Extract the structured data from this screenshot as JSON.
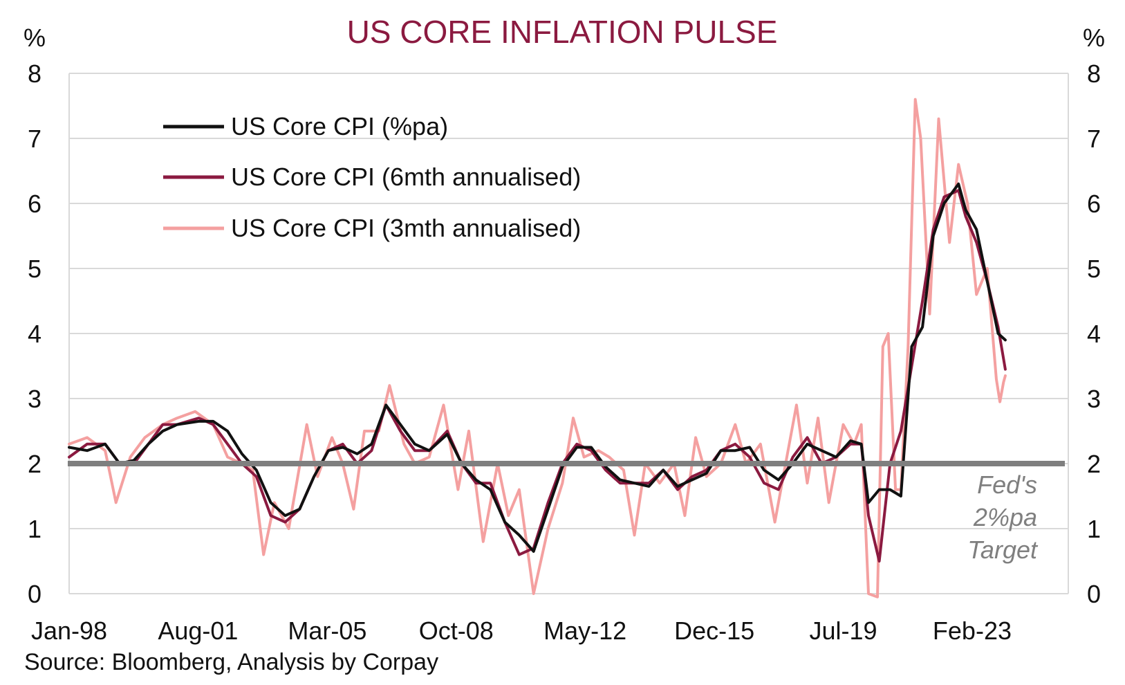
{
  "chart_data": {
    "type": "line",
    "title": "US CORE INFLATION PULSE",
    "ylabel_left": "%",
    "ylabel_right": "%",
    "ylim": [
      0,
      8
    ],
    "yticks": [
      0,
      1,
      2,
      3,
      4,
      5,
      6,
      7,
      8
    ],
    "xlim": [
      1998.0,
      2025.75
    ],
    "xticks": [
      {
        "label": "Jan-98",
        "value": 1998.0
      },
      {
        "label": "Aug-01",
        "value": 2001.58
      },
      {
        "label": "Mar-05",
        "value": 2005.17
      },
      {
        "label": "Oct-08",
        "value": 2008.75
      },
      {
        "label": "May-12",
        "value": 2012.33
      },
      {
        "label": "Dec-15",
        "value": 2015.92
      },
      {
        "label": "Jul-19",
        "value": 2019.5
      },
      {
        "label": "Feb-23",
        "value": 2023.08
      }
    ],
    "grid": true,
    "legend_position": "top-left",
    "reference_line": {
      "value": 2,
      "color": "#7f7f7f",
      "label_lines": [
        "Fed's",
        "2%pa",
        "Target"
      ]
    },
    "source": "Source: Bloomberg, Analysis by Corpay",
    "series": [
      {
        "name": "US Core CPI (%pa)",
        "color": "#111111",
        "points": [
          [
            1998.0,
            2.25
          ],
          [
            1998.5,
            2.2
          ],
          [
            1999.0,
            2.3
          ],
          [
            1999.4,
            2.0
          ],
          [
            1999.8,
            2.05
          ],
          [
            2000.2,
            2.3
          ],
          [
            2000.6,
            2.5
          ],
          [
            2001.0,
            2.6
          ],
          [
            2001.6,
            2.65
          ],
          [
            2002.0,
            2.65
          ],
          [
            2002.4,
            2.5
          ],
          [
            2002.8,
            2.15
          ],
          [
            2003.2,
            1.9
          ],
          [
            2003.6,
            1.4
          ],
          [
            2004.0,
            1.2
          ],
          [
            2004.4,
            1.3
          ],
          [
            2004.8,
            1.8
          ],
          [
            2005.2,
            2.2
          ],
          [
            2005.6,
            2.25
          ],
          [
            2006.0,
            2.15
          ],
          [
            2006.4,
            2.3
          ],
          [
            2006.8,
            2.9
          ],
          [
            2007.2,
            2.6
          ],
          [
            2007.6,
            2.3
          ],
          [
            2008.0,
            2.2
          ],
          [
            2008.5,
            2.45
          ],
          [
            2008.9,
            2.0
          ],
          [
            2009.3,
            1.75
          ],
          [
            2009.7,
            1.6
          ],
          [
            2010.1,
            1.1
          ],
          [
            2010.5,
            0.9
          ],
          [
            2010.9,
            0.65
          ],
          [
            2011.3,
            1.3
          ],
          [
            2011.7,
            1.95
          ],
          [
            2012.1,
            2.25
          ],
          [
            2012.5,
            2.25
          ],
          [
            2012.9,
            1.95
          ],
          [
            2013.3,
            1.75
          ],
          [
            2013.7,
            1.7
          ],
          [
            2014.1,
            1.65
          ],
          [
            2014.5,
            1.9
          ],
          [
            2014.9,
            1.65
          ],
          [
            2015.3,
            1.75
          ],
          [
            2015.7,
            1.85
          ],
          [
            2016.1,
            2.2
          ],
          [
            2016.5,
            2.2
          ],
          [
            2016.9,
            2.25
          ],
          [
            2017.3,
            1.9
          ],
          [
            2017.7,
            1.75
          ],
          [
            2018.1,
            2.0
          ],
          [
            2018.5,
            2.3
          ],
          [
            2018.9,
            2.2
          ],
          [
            2019.3,
            2.1
          ],
          [
            2019.7,
            2.35
          ],
          [
            2020.0,
            2.3
          ],
          [
            2020.2,
            1.4
          ],
          [
            2020.5,
            1.6
          ],
          [
            2020.8,
            1.6
          ],
          [
            2021.1,
            1.5
          ],
          [
            2021.4,
            3.8
          ],
          [
            2021.7,
            4.1
          ],
          [
            2022.0,
            5.5
          ],
          [
            2022.3,
            6.0
          ],
          [
            2022.7,
            6.3
          ],
          [
            2022.9,
            5.9
          ],
          [
            2023.2,
            5.6
          ],
          [
            2023.5,
            4.8
          ],
          [
            2023.8,
            4.0
          ],
          [
            2024.0,
            3.9
          ]
        ]
      },
      {
        "name": "US Core CPI (6mth annualised)",
        "color": "#8b1a40",
        "points": [
          [
            1998.0,
            2.1
          ],
          [
            1998.5,
            2.3
          ],
          [
            1999.0,
            2.3
          ],
          [
            1999.4,
            2.0
          ],
          [
            1999.8,
            2.0
          ],
          [
            2000.2,
            2.3
          ],
          [
            2000.6,
            2.6
          ],
          [
            2001.0,
            2.6
          ],
          [
            2001.6,
            2.7
          ],
          [
            2002.0,
            2.6
          ],
          [
            2002.4,
            2.3
          ],
          [
            2002.8,
            2.0
          ],
          [
            2003.2,
            1.8
          ],
          [
            2003.6,
            1.2
          ],
          [
            2004.0,
            1.1
          ],
          [
            2004.4,
            1.3
          ],
          [
            2004.8,
            1.8
          ],
          [
            2005.2,
            2.2
          ],
          [
            2005.6,
            2.3
          ],
          [
            2006.0,
            2.0
          ],
          [
            2006.4,
            2.2
          ],
          [
            2006.8,
            2.9
          ],
          [
            2007.2,
            2.5
          ],
          [
            2007.6,
            2.2
          ],
          [
            2008.0,
            2.2
          ],
          [
            2008.5,
            2.5
          ],
          [
            2008.9,
            2.0
          ],
          [
            2009.3,
            1.7
          ],
          [
            2009.7,
            1.7
          ],
          [
            2010.1,
            1.1
          ],
          [
            2010.5,
            0.6
          ],
          [
            2010.9,
            0.7
          ],
          [
            2011.3,
            1.4
          ],
          [
            2011.7,
            2.0
          ],
          [
            2012.1,
            2.3
          ],
          [
            2012.5,
            2.2
          ],
          [
            2012.9,
            1.9
          ],
          [
            2013.3,
            1.7
          ],
          [
            2013.7,
            1.7
          ],
          [
            2014.1,
            1.7
          ],
          [
            2014.5,
            1.9
          ],
          [
            2014.9,
            1.6
          ],
          [
            2015.3,
            1.8
          ],
          [
            2015.7,
            1.9
          ],
          [
            2016.1,
            2.2
          ],
          [
            2016.5,
            2.3
          ],
          [
            2016.9,
            2.1
          ],
          [
            2017.3,
            1.7
          ],
          [
            2017.7,
            1.6
          ],
          [
            2018.1,
            2.1
          ],
          [
            2018.5,
            2.4
          ],
          [
            2018.9,
            2.0
          ],
          [
            2019.3,
            2.1
          ],
          [
            2019.7,
            2.3
          ],
          [
            2020.0,
            2.3
          ],
          [
            2020.2,
            1.2
          ],
          [
            2020.5,
            0.5
          ],
          [
            2020.8,
            2.0
          ],
          [
            2021.1,
            2.5
          ],
          [
            2021.4,
            3.5
          ],
          [
            2021.7,
            4.5
          ],
          [
            2022.0,
            5.6
          ],
          [
            2022.3,
            6.1
          ],
          [
            2022.7,
            6.2
          ],
          [
            2022.9,
            5.8
          ],
          [
            2023.2,
            5.4
          ],
          [
            2023.5,
            4.8
          ],
          [
            2023.8,
            4.1
          ],
          [
            2024.0,
            3.45
          ]
        ]
      },
      {
        "name": "US Core CPI (3mth annualised)",
        "color": "#f4a0a0",
        "points": [
          [
            1998.0,
            2.3
          ],
          [
            1998.5,
            2.4
          ],
          [
            1999.0,
            2.2
          ],
          [
            1999.3,
            1.4
          ],
          [
            1999.7,
            2.1
          ],
          [
            2000.1,
            2.4
          ],
          [
            2000.6,
            2.6
          ],
          [
            2001.0,
            2.7
          ],
          [
            2001.5,
            2.8
          ],
          [
            2002.0,
            2.6
          ],
          [
            2002.4,
            2.1
          ],
          [
            2002.8,
            2.0
          ],
          [
            2003.1,
            1.9
          ],
          [
            2003.4,
            0.6
          ],
          [
            2003.7,
            1.4
          ],
          [
            2004.1,
            1.0
          ],
          [
            2004.6,
            2.6
          ],
          [
            2004.9,
            1.8
          ],
          [
            2005.3,
            2.4
          ],
          [
            2005.6,
            2.0
          ],
          [
            2005.9,
            1.3
          ],
          [
            2006.2,
            2.5
          ],
          [
            2006.6,
            2.5
          ],
          [
            2006.9,
            3.2
          ],
          [
            2007.3,
            2.3
          ],
          [
            2007.6,
            2.0
          ],
          [
            2008.0,
            2.1
          ],
          [
            2008.4,
            2.9
          ],
          [
            2008.8,
            1.6
          ],
          [
            2009.1,
            2.5
          ],
          [
            2009.5,
            0.8
          ],
          [
            2009.9,
            2.0
          ],
          [
            2010.2,
            1.2
          ],
          [
            2010.5,
            1.6
          ],
          [
            2010.9,
            0.0
          ],
          [
            2011.3,
            1.0
          ],
          [
            2011.7,
            1.7
          ],
          [
            2012.0,
            2.7
          ],
          [
            2012.3,
            2.1
          ],
          [
            2012.7,
            2.2
          ],
          [
            2013.0,
            2.1
          ],
          [
            2013.4,
            1.9
          ],
          [
            2013.7,
            0.9
          ],
          [
            2014.0,
            2.0
          ],
          [
            2014.4,
            1.7
          ],
          [
            2014.8,
            2.0
          ],
          [
            2015.1,
            1.2
          ],
          [
            2015.4,
            2.4
          ],
          [
            2015.7,
            1.8
          ],
          [
            2016.1,
            2.0
          ],
          [
            2016.5,
            2.6
          ],
          [
            2016.8,
            2.0
          ],
          [
            2017.2,
            2.3
          ],
          [
            2017.6,
            1.1
          ],
          [
            2017.9,
            2.0
          ],
          [
            2018.2,
            2.9
          ],
          [
            2018.5,
            1.7
          ],
          [
            2018.8,
            2.7
          ],
          [
            2019.1,
            1.4
          ],
          [
            2019.5,
            2.6
          ],
          [
            2019.8,
            2.3
          ],
          [
            2020.0,
            2.6
          ],
          [
            2020.2,
            0.0
          ],
          [
            2020.45,
            -0.2
          ],
          [
            2020.6,
            3.8
          ],
          [
            2020.75,
            4.0
          ],
          [
            2020.95,
            1.6
          ],
          [
            2021.1,
            1.6
          ],
          [
            2021.3,
            3.8
          ],
          [
            2021.5,
            7.6
          ],
          [
            2021.65,
            7.0
          ],
          [
            2021.9,
            4.3
          ],
          [
            2022.15,
            7.3
          ],
          [
            2022.45,
            5.4
          ],
          [
            2022.7,
            6.6
          ],
          [
            2022.95,
            6.0
          ],
          [
            2023.2,
            4.6
          ],
          [
            2023.5,
            5.0
          ],
          [
            2023.75,
            3.3
          ],
          [
            2023.85,
            2.95
          ],
          [
            2023.95,
            3.25
          ],
          [
            2024.0,
            3.35
          ]
        ]
      }
    ]
  }
}
